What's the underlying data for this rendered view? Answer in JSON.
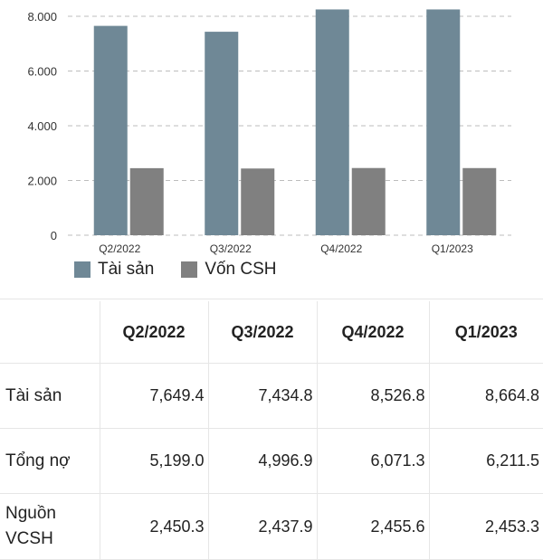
{
  "chart_data": {
    "type": "bar",
    "categories": [
      "Q2/2022",
      "Q3/2022",
      "Q4/2022",
      "Q1/2023"
    ],
    "series": [
      {
        "name": "Tài sản",
        "values": [
          7649.4,
          7434.8,
          8526.8,
          8664.8
        ],
        "color": "#6f8896"
      },
      {
        "name": "Vốn CSH",
        "values": [
          2450.3,
          2437.9,
          2455.6,
          2453.3
        ],
        "color": "#808080"
      }
    ],
    "ylim": [
      0,
      8000
    ],
    "yticks": [
      0,
      2000,
      4000,
      6000,
      8000
    ],
    "ytick_labels": [
      "0",
      "2.000",
      "4.000",
      "6.000",
      "8.000"
    ],
    "grid": true,
    "legend_position": "bottom-left"
  },
  "table": {
    "columns": [
      "",
      "Q2/2022",
      "Q3/2022",
      "Q4/2022",
      "Q1/2023"
    ],
    "rows": [
      {
        "label": "Tài sản",
        "values": [
          "7,649.4",
          "7,434.8",
          "8,526.8",
          "8,664.8"
        ]
      },
      {
        "label": "Tổng nợ",
        "values": [
          "5,199.0",
          "4,996.9",
          "6,071.3",
          "6,211.5"
        ]
      },
      {
        "label": "Nguồn VCSH",
        "values": [
          "2,450.3",
          "2,437.9",
          "2,455.6",
          "2,453.3"
        ]
      }
    ]
  }
}
